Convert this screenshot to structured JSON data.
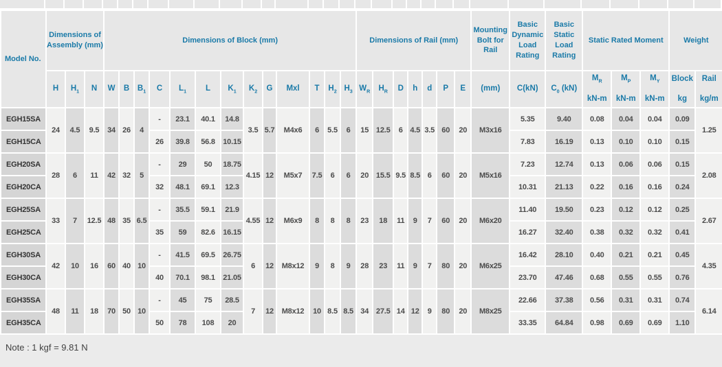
{
  "note": "Note : 1 kgf = 9.81 N",
  "colors": {
    "header_text": "#1a7aa8",
    "stripe_light": "#f1f1f0",
    "stripe_dark": "#dcdcdc",
    "model_cell": "#d5d5d5"
  },
  "table": {
    "groups": [
      {
        "label": "Dimensions of Assembly (mm)",
        "span": 3
      },
      {
        "label": "Dimensions of Block (mm)",
        "span": 13
      },
      {
        "label": "Dimensions of Rail (mm)",
        "span": 7
      },
      {
        "label": "Mounting Bolt for Rail",
        "span": 1
      },
      {
        "label": "Basic Dynamic Load Rating",
        "span": 1
      },
      {
        "label": "Basic Static Load Rating",
        "span": 1
      },
      {
        "label": "Static Rated Moment",
        "span": 3
      },
      {
        "label": "Weight",
        "span": 2
      }
    ],
    "col_defs": [
      {
        "key": "model",
        "width": 66,
        "shared": false,
        "label": [
          [
            {
              "t": "Model No."
            }
          ]
        ]
      },
      {
        "key": "H",
        "width": 28,
        "shared": true,
        "label": [
          [
            {
              "t": "H"
            }
          ]
        ]
      },
      {
        "key": "H1",
        "width": 28,
        "shared": true,
        "label": [
          [
            {
              "t": "H"
            },
            {
              "s": "1"
            }
          ]
        ]
      },
      {
        "key": "N",
        "width": 28,
        "shared": true,
        "label": [
          [
            {
              "t": "N"
            }
          ]
        ]
      },
      {
        "key": "W",
        "width": 22,
        "shared": true,
        "label": [
          [
            {
              "t": "W"
            }
          ]
        ]
      },
      {
        "key": "B",
        "width": 22,
        "shared": true,
        "label": [
          [
            {
              "t": "B"
            }
          ]
        ]
      },
      {
        "key": "B1",
        "width": 22,
        "shared": true,
        "label": [
          [
            {
              "t": "B"
            },
            {
              "s": "1"
            }
          ]
        ]
      },
      {
        "key": "C",
        "width": 30,
        "shared": false,
        "label": [
          [
            {
              "t": "C"
            }
          ]
        ]
      },
      {
        "key": "L1",
        "width": 37,
        "shared": false,
        "label": [
          [
            {
              "t": "L"
            },
            {
              "s": "1"
            }
          ]
        ]
      },
      {
        "key": "L",
        "width": 37,
        "shared": false,
        "label": [
          [
            {
              "t": "L"
            }
          ]
        ]
      },
      {
        "key": "K1",
        "width": 33,
        "shared": false,
        "label": [
          [
            {
              "t": "K"
            },
            {
              "s": "1"
            }
          ]
        ]
      },
      {
        "key": "K2",
        "width": 28,
        "shared": true,
        "label": [
          [
            {
              "t": "K"
            },
            {
              "s": "2"
            }
          ]
        ]
      },
      {
        "key": "G",
        "width": 20,
        "shared": true,
        "label": [
          [
            {
              "t": "G"
            }
          ]
        ]
      },
      {
        "key": "Mxl",
        "width": 48,
        "shared": true,
        "label": [
          [
            {
              "t": "Mxl"
            }
          ]
        ]
      },
      {
        "key": "T",
        "width": 22,
        "shared": true,
        "label": [
          [
            {
              "t": "T"
            }
          ]
        ]
      },
      {
        "key": "H2",
        "width": 23,
        "shared": true,
        "label": [
          [
            {
              "t": "H"
            },
            {
              "s": "2"
            }
          ]
        ]
      },
      {
        "key": "H3",
        "width": 23,
        "shared": true,
        "label": [
          [
            {
              "t": "H"
            },
            {
              "s": "3"
            }
          ]
        ]
      },
      {
        "key": "WR",
        "width": 24,
        "shared": true,
        "label": [
          [
            {
              "t": "W"
            },
            {
              "s": "R"
            }
          ]
        ]
      },
      {
        "key": "HR",
        "width": 30,
        "shared": true,
        "label": [
          [
            {
              "t": "H"
            },
            {
              "s": "R"
            }
          ]
        ]
      },
      {
        "key": "D",
        "width": 21,
        "shared": true,
        "label": [
          [
            {
              "t": "D"
            }
          ]
        ]
      },
      {
        "key": "h",
        "width": 21,
        "shared": true,
        "label": [
          [
            {
              "t": "h"
            }
          ]
        ]
      },
      {
        "key": "d",
        "width": 21,
        "shared": true,
        "label": [
          [
            {
              "t": "d"
            }
          ]
        ]
      },
      {
        "key": "P",
        "width": 26,
        "shared": true,
        "label": [
          [
            {
              "t": "P"
            }
          ]
        ]
      },
      {
        "key": "E",
        "width": 24,
        "shared": true,
        "label": [
          [
            {
              "t": "E"
            }
          ]
        ]
      },
      {
        "key": "bolt",
        "width": 56,
        "shared": true,
        "label": [
          [
            {
              "t": "(mm)"
            }
          ]
        ]
      },
      {
        "key": "CkN",
        "width": 52,
        "shared": false,
        "label": [
          [
            {
              "t": "C(kN)"
            }
          ]
        ]
      },
      {
        "key": "C0kN",
        "width": 54,
        "shared": false,
        "label": [
          [
            {
              "t": "C"
            },
            {
              "s": "0"
            },
            {
              "t": " (kN)"
            }
          ]
        ]
      },
      {
        "key": "MR",
        "width": 42,
        "shared": false,
        "label": [
          [
            {
              "t": "M"
            },
            {
              "s": "R"
            }
          ],
          [
            {
              "t": "kN-m"
            }
          ]
        ]
      },
      {
        "key": "MP",
        "width": 42,
        "shared": false,
        "label": [
          [
            {
              "t": "M"
            },
            {
              "s": "P"
            }
          ],
          [
            {
              "t": "kN-m"
            }
          ]
        ]
      },
      {
        "key": "MY",
        "width": 42,
        "shared": false,
        "label": [
          [
            {
              "t": "M"
            },
            {
              "s": "Y"
            }
          ],
          [
            {
              "t": "kN-m"
            }
          ]
        ]
      },
      {
        "key": "block",
        "width": 38,
        "shared": false,
        "label": [
          [
            {
              "t": "Block"
            }
          ],
          [
            {
              "t": "kg"
            }
          ]
        ]
      },
      {
        "key": "rail",
        "width": 40,
        "shared": true,
        "label": [
          [
            {
              "t": "Rail"
            }
          ],
          [
            {
              "t": "kg/m"
            }
          ]
        ]
      }
    ],
    "pairs": [
      {
        "id": "EGH15",
        "shared": {
          "H": "24",
          "H1": "4.5",
          "N": "9.5",
          "W": "34",
          "B": "26",
          "B1": "4",
          "K2": "3.5",
          "G": "5.7",
          "Mxl": "M4x6",
          "T": "6",
          "H2": "5.5",
          "H3": "6",
          "WR": "15",
          "HR": "12.5",
          "D": "6",
          "h": "4.5",
          "d": "3.5",
          "P": "60",
          "E": "20",
          "bolt": "M3x16",
          "rail": "1.25"
        },
        "rows": [
          {
            "model": "EGH15SA",
            "C": "-",
            "L1": "23.1",
            "L": "40.1",
            "K1": "14.8",
            "CkN": "5.35",
            "C0kN": "9.40",
            "MR": "0.08",
            "MP": "0.04",
            "MY": "0.04",
            "block": "0.09"
          },
          {
            "model": "EGH15CA",
            "C": "26",
            "L1": "39.8",
            "L": "56.8",
            "K1": "10.15",
            "CkN": "7.83",
            "C0kN": "16.19",
            "MR": "0.13",
            "MP": "0.10",
            "MY": "0.10",
            "block": "0.15"
          }
        ]
      },
      {
        "id": "EGH20",
        "shared": {
          "H": "28",
          "H1": "6",
          "N": "11",
          "W": "42",
          "B": "32",
          "B1": "5",
          "K2": "4.15",
          "G": "12",
          "Mxl": "M5x7",
          "T": "7.5",
          "H2": "6",
          "H3": "6",
          "WR": "20",
          "HR": "15.5",
          "D": "9.5",
          "h": "8.5",
          "d": "6",
          "P": "60",
          "E": "20",
          "bolt": "M5x16",
          "rail": "2.08"
        },
        "rows": [
          {
            "model": "EGH20SA",
            "C": "-",
            "L1": "29",
            "L": "50",
            "K1": "18.75",
            "CkN": "7.23",
            "C0kN": "12.74",
            "MR": "0.13",
            "MP": "0.06",
            "MY": "0.06",
            "block": "0.15"
          },
          {
            "model": "EGH20CA",
            "C": "32",
            "L1": "48.1",
            "L": "69.1",
            "K1": "12.3",
            "CkN": "10.31",
            "C0kN": "21.13",
            "MR": "0.22",
            "MP": "0.16",
            "MY": "0.16",
            "block": "0.24"
          }
        ]
      },
      {
        "id": "EGH25",
        "shared": {
          "H": "33",
          "H1": "7",
          "N": "12.5",
          "W": "48",
          "B": "35",
          "B1": "6.5",
          "K2": "4.55",
          "G": "12",
          "Mxl": "M6x9",
          "T": "8",
          "H2": "8",
          "H3": "8",
          "WR": "23",
          "HR": "18",
          "D": "11",
          "h": "9",
          "d": "7",
          "P": "60",
          "E": "20",
          "bolt": "M6x20",
          "rail": "2.67"
        },
        "rows": [
          {
            "model": "EGH25SA",
            "C": "-",
            "L1": "35.5",
            "L": "59.1",
            "K1": "21.9",
            "CkN": "11.40",
            "C0kN": "19.50",
            "MR": "0.23",
            "MP": "0.12",
            "MY": "0.12",
            "block": "0.25"
          },
          {
            "model": "EGH25CA",
            "C": "35",
            "L1": "59",
            "L": "82.6",
            "K1": "16.15",
            "CkN": "16.27",
            "C0kN": "32.40",
            "MR": "0.38",
            "MP": "0.32",
            "MY": "0.32",
            "block": "0.41"
          }
        ]
      },
      {
        "id": "EGH30",
        "shared": {
          "H": "42",
          "H1": "10",
          "N": "16",
          "W": "60",
          "B": "40",
          "B1": "10",
          "K2": "6",
          "G": "12",
          "Mxl": "M8x12",
          "T": "9",
          "H2": "8",
          "H3": "9",
          "WR": "28",
          "HR": "23",
          "D": "11",
          "h": "9",
          "d": "7",
          "P": "80",
          "E": "20",
          "bolt": "M6x25",
          "rail": "4.35"
        },
        "rows": [
          {
            "model": "EGH30SA",
            "C": "-",
            "L1": "41.5",
            "L": "69.5",
            "K1": "26.75",
            "CkN": "16.42",
            "C0kN": "28.10",
            "MR": "0.40",
            "MP": "0.21",
            "MY": "0.21",
            "block": "0.45"
          },
          {
            "model": "EGH30CA",
            "C": "40",
            "L1": "70.1",
            "L": "98.1",
            "K1": "21.05",
            "CkN": "23.70",
            "C0kN": "47.46",
            "MR": "0.68",
            "MP": "0.55",
            "MY": "0.55",
            "block": "0.76"
          }
        ]
      },
      {
        "id": "EGH35",
        "shared": {
          "H": "48",
          "H1": "11",
          "N": "18",
          "W": "70",
          "B": "50",
          "B1": "10",
          "K2": "7",
          "G": "12",
          "Mxl": "M8x12",
          "T": "10",
          "H2": "8.5",
          "H3": "8.5",
          "WR": "34",
          "HR": "27.5",
          "D": "14",
          "h": "12",
          "d": "9",
          "P": "80",
          "E": "20",
          "bolt": "M8x25",
          "rail": "6.14"
        },
        "rows": [
          {
            "model": "EGH35SA",
            "C": "-",
            "L1": "45",
            "L": "75",
            "K1": "28.5",
            "CkN": "22.66",
            "C0kN": "37.38",
            "MR": "0.56",
            "MP": "0.31",
            "MY": "0.31",
            "block": "0.74"
          },
          {
            "model": "EGH35CA",
            "C": "50",
            "L1": "78",
            "L": "108",
            "K1": "20",
            "CkN": "33.35",
            "C0kN": "64.84",
            "MR": "0.98",
            "MP": "0.69",
            "MY": "0.69",
            "block": "1.10"
          }
        ]
      }
    ]
  }
}
